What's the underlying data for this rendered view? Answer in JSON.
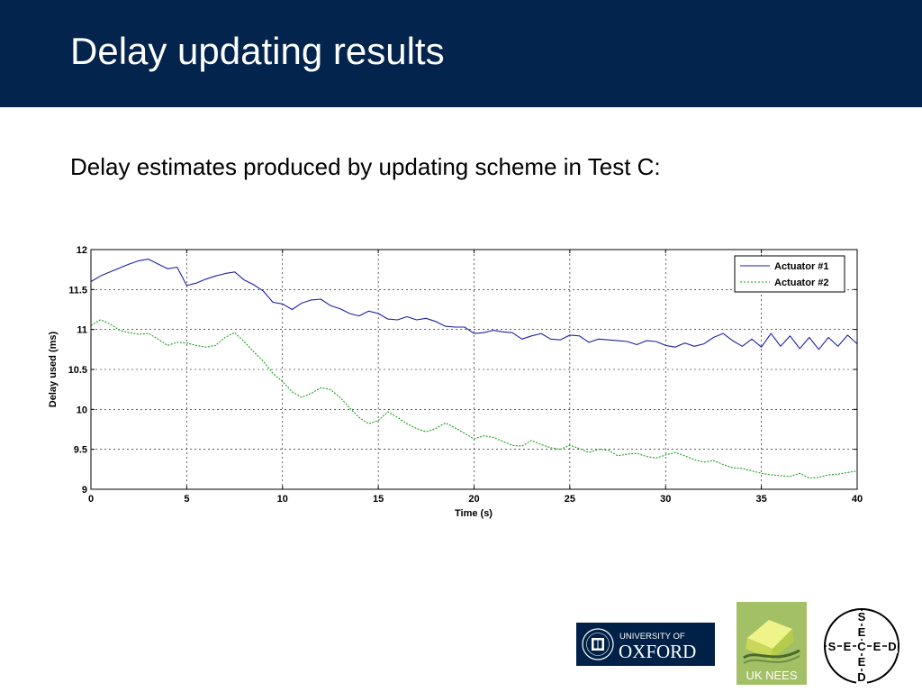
{
  "slide": {
    "title": "Delay updating results",
    "subtitle": "Delay estimates produced by updating scheme in Test C:"
  },
  "colors": {
    "header_bg": "#03244d",
    "series1": "#1f1fa8",
    "series2": "#1a9e1a"
  },
  "chart_data": {
    "type": "line",
    "title": "",
    "xlabel": "Time (s)",
    "ylabel": "Delay used (ms)",
    "xlim": [
      0,
      40
    ],
    "ylim": [
      9,
      12
    ],
    "xticks": [
      0,
      5,
      10,
      15,
      20,
      25,
      30,
      35,
      40
    ],
    "yticks": [
      9,
      9.5,
      10,
      10.5,
      11,
      11.5,
      12
    ],
    "grid": true,
    "legend_position": "top-right",
    "series": [
      {
        "name": "Actuator #1",
        "color": "#1f1fa8",
        "style": "solid",
        "x": [
          0,
          0.5,
          1,
          1.5,
          2,
          2.5,
          3,
          3.5,
          4,
          4.5,
          5,
          5.5,
          6,
          6.5,
          7,
          7.5,
          8,
          8.5,
          9,
          9.5,
          10,
          10.5,
          11,
          11.5,
          12,
          12.5,
          13,
          13.5,
          14,
          14.5,
          15,
          15.5,
          16,
          16.5,
          17,
          17.5,
          18,
          18.5,
          19,
          19.5,
          20,
          20.5,
          21,
          21.5,
          22,
          22.5,
          23,
          23.5,
          24,
          24.5,
          25,
          25.5,
          26,
          26.5,
          27,
          27.5,
          28,
          28.5,
          29,
          29.5,
          30,
          30.5,
          31,
          31.5,
          32,
          32.5,
          33,
          33.5,
          34,
          34.5,
          35,
          35.5,
          36,
          36.5,
          37,
          37.5,
          38,
          38.5,
          39,
          39.5,
          40
        ],
        "y": [
          11.6,
          11.67,
          11.72,
          11.77,
          11.82,
          11.86,
          11.88,
          11.82,
          11.76,
          11.78,
          11.55,
          11.58,
          11.63,
          11.67,
          11.7,
          11.72,
          11.62,
          11.56,
          11.48,
          11.34,
          11.32,
          11.25,
          11.33,
          11.37,
          11.38,
          11.3,
          11.26,
          11.2,
          11.17,
          11.23,
          11.2,
          11.13,
          11.12,
          11.16,
          11.12,
          11.14,
          11.1,
          11.04,
          11.03,
          11.03,
          10.95,
          10.96,
          10.99,
          10.97,
          10.96,
          10.88,
          10.92,
          10.95,
          10.88,
          10.87,
          10.93,
          10.92,
          10.84,
          10.88,
          10.87,
          10.86,
          10.85,
          10.81,
          10.86,
          10.85,
          10.8,
          10.78,
          10.83,
          10.79,
          10.82,
          10.9,
          10.95,
          10.86,
          10.79,
          10.88,
          10.78,
          10.95,
          10.79,
          10.92,
          10.76,
          10.9,
          10.75,
          10.9,
          10.79,
          10.93,
          10.82
        ]
      },
      {
        "name": "Actuator #2",
        "color": "#1a9e1a",
        "style": "dashed",
        "x": [
          0,
          0.5,
          1,
          1.5,
          2,
          2.5,
          3,
          3.5,
          4,
          4.5,
          5,
          5.5,
          6,
          6.5,
          7,
          7.5,
          8,
          8.5,
          9,
          9.5,
          10,
          10.5,
          11,
          11.5,
          12,
          12.5,
          13,
          13.5,
          14,
          14.5,
          15,
          15.5,
          16,
          16.5,
          17,
          17.5,
          18,
          18.5,
          19,
          19.5,
          20,
          20.5,
          21,
          21.5,
          22,
          22.5,
          23,
          23.5,
          24,
          24.5,
          25,
          25.5,
          26,
          26.5,
          27,
          27.5,
          28,
          28.5,
          29,
          29.5,
          30,
          30.5,
          31,
          31.5,
          32,
          32.5,
          33,
          33.5,
          34,
          34.5,
          35,
          35.5,
          36,
          36.5,
          37,
          37.5,
          38,
          38.5,
          39,
          39.5,
          40
        ],
        "y": [
          11.05,
          11.12,
          11.07,
          10.99,
          10.96,
          10.94,
          10.95,
          10.88,
          10.8,
          10.84,
          10.83,
          10.8,
          10.78,
          10.8,
          10.9,
          10.96,
          10.85,
          10.72,
          10.6,
          10.45,
          10.35,
          10.22,
          10.15,
          10.2,
          10.27,
          10.25,
          10.15,
          10.02,
          9.9,
          9.82,
          9.86,
          9.97,
          9.9,
          9.82,
          9.76,
          9.72,
          9.76,
          9.83,
          9.77,
          9.7,
          9.63,
          9.67,
          9.65,
          9.6,
          9.55,
          9.54,
          9.61,
          9.56,
          9.52,
          9.5,
          9.55,
          9.51,
          9.46,
          9.5,
          9.49,
          9.42,
          9.44,
          9.45,
          9.41,
          9.39,
          9.43,
          9.46,
          9.42,
          9.37,
          9.34,
          9.36,
          9.31,
          9.27,
          9.26,
          9.23,
          9.2,
          9.18,
          9.17,
          9.16,
          9.2,
          9.14,
          9.15,
          9.18,
          9.19,
          9.21,
          9.23
        ]
      }
    ]
  },
  "logos": {
    "oxford": {
      "line1": "UNIVERSITY OF",
      "line2": "OXFORD"
    },
    "uknees": {
      "text": "UK NEES"
    },
    "seced": {
      "letters": "SECED"
    }
  }
}
